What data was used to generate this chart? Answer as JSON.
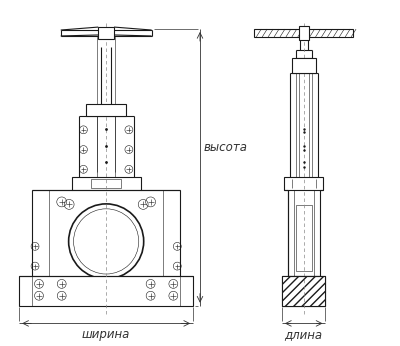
{
  "bg_color": "#ffffff",
  "line_color": "#1a1a1a",
  "dim_color": "#333333",
  "label_vysota": "высота",
  "label_shirina": "ширина",
  "label_dlina": "длина",
  "label_fontsize": 8.5,
  "fig_width": 4.0,
  "fig_height": 3.46,
  "dpi": 100
}
